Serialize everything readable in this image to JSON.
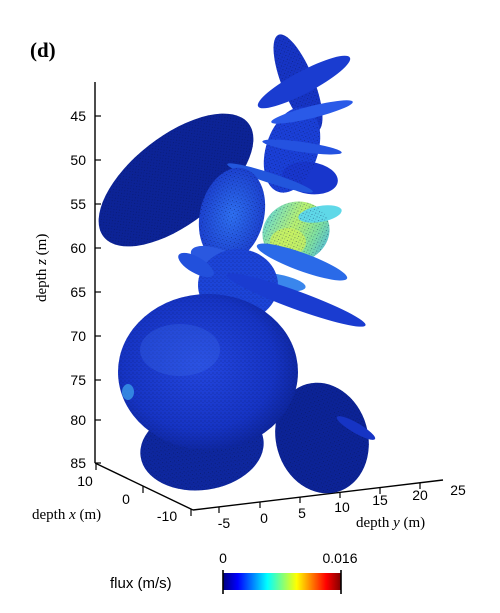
{
  "panel_label": "(d)",
  "axes": {
    "z": {
      "label_prefix": "depth ",
      "label_var": "z",
      "label_unit": " (m)",
      "ticks": [
        "45",
        "50",
        "55",
        "60",
        "65",
        "70",
        "75",
        "80",
        "85"
      ]
    },
    "x": {
      "label_prefix": "depth ",
      "label_var": "x",
      "label_unit": " (m)",
      "ticks": [
        "10",
        "0",
        "-10"
      ]
    },
    "y": {
      "label_prefix": "depth ",
      "label_var": "y",
      "label_unit": " (m)",
      "ticks": [
        "-5",
        "0",
        "5",
        "10",
        "15",
        "20",
        "25"
      ]
    }
  },
  "colorbar": {
    "label": "flux (m/s)",
    "min_label": "0",
    "max_label": "0.016",
    "colors": [
      "#00007f",
      "#0000ff",
      "#007fff",
      "#00ffff",
      "#7fff7f",
      "#ffff00",
      "#ff7f00",
      "#ff0000",
      "#7f0000"
    ]
  },
  "colors": {
    "body_dark": "#0a1e8c",
    "body_mid": "#1a3fd6",
    "body_light": "#3f8cf0",
    "highlight_cyan": "#4fd0f0",
    "highlight_green": "#9fe070",
    "highlight_yellow": "#d8f060"
  }
}
